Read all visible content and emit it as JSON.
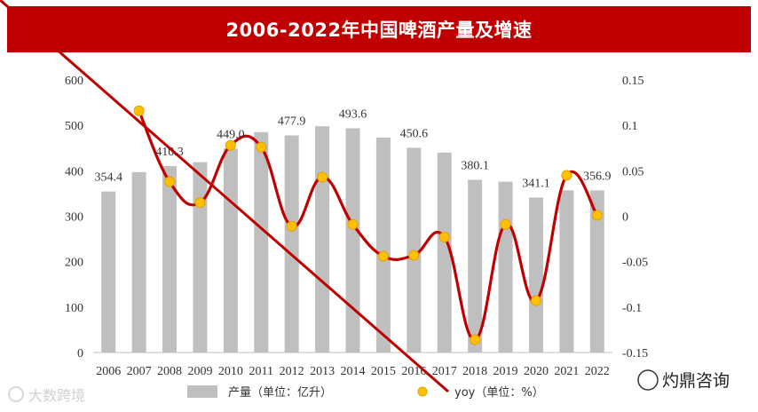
{
  "title": "2006-2022年中国啤酒产量及增速",
  "chart_data": {
    "type": "bar",
    "categories": [
      "2006",
      "2007",
      "2008",
      "2009",
      "2010",
      "2011",
      "2012",
      "2013",
      "2014",
      "2015",
      "2016",
      "2017",
      "2018",
      "2019",
      "2020",
      "2021",
      "2022"
    ],
    "series": [
      {
        "name": "产量（单位：亿升）",
        "type": "bar",
        "axis": "left",
        "values": [
          354.4,
          397.0,
          410.3,
          419.0,
          449.0,
          485.0,
          477.9,
          498.0,
          493.6,
          473.0,
          450.6,
          440.0,
          380.1,
          376.0,
          341.1,
          357.0,
          356.9
        ]
      },
      {
        "name": "yoy（单位：%）",
        "type": "line",
        "axis": "right",
        "values": [
          null,
          0.116,
          0.038,
          0.015,
          0.078,
          0.076,
          -0.011,
          0.043,
          -0.009,
          -0.044,
          -0.043,
          -0.023,
          -0.136,
          -0.009,
          -0.093,
          0.045,
          0.001
        ]
      }
    ],
    "data_labels": [
      {
        "index": 0,
        "text": "354.4"
      },
      {
        "index": 2,
        "text": "410.3"
      },
      {
        "index": 4,
        "text": "449.0"
      },
      {
        "index": 6,
        "text": "477.9"
      },
      {
        "index": 8,
        "text": "493.6"
      },
      {
        "index": 10,
        "text": "450.6"
      },
      {
        "index": 12,
        "text": "380.1"
      },
      {
        "index": 14,
        "text": "341.1"
      },
      {
        "index": 16,
        "text": "356.9"
      }
    ],
    "y_left": {
      "min": 0,
      "max": 600,
      "ticks": [
        "0",
        "100",
        "200",
        "300",
        "400",
        "500",
        "600"
      ]
    },
    "y_right": {
      "min": -0.15,
      "max": 0.15,
      "ticks": [
        "-0.15",
        "-0.1",
        "-0.05",
        "0",
        "0.05",
        "0.1",
        "0.15"
      ]
    },
    "grid": false,
    "legend_position": "bottom",
    "colors": {
      "bar": "#bfbfbf",
      "line": "#c00000",
      "marker_fill": "#ffc000",
      "marker_edge": "#e6a000",
      "title_bg": "#c00000"
    }
  },
  "watermarks": {
    "left": "大数跨境",
    "right": "灼鼎咨询"
  }
}
